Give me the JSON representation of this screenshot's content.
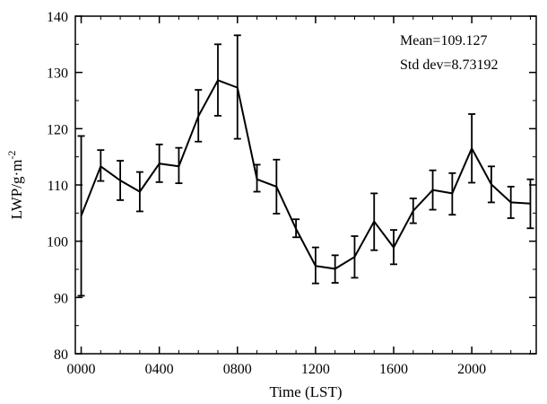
{
  "chart_data": {
    "type": "line",
    "xlabel": "Time (LST)",
    "ylabel": "LWP/g·m",
    "ylabel_sup": "-2",
    "xlim": [
      -0.3,
      23.3
    ],
    "ylim": [
      80,
      140
    ],
    "x_ticks": [
      0,
      4,
      8,
      12,
      16,
      20
    ],
    "x_tick_labels": [
      "0000",
      "0400",
      "0800",
      "1200",
      "1600",
      "2000"
    ],
    "y_ticks": [
      80,
      90,
      100,
      110,
      120,
      130,
      140
    ],
    "y_tick_labels": [
      "80",
      "90",
      "100",
      "110",
      "120",
      "130",
      "140"
    ],
    "grid": false,
    "series": [
      {
        "x": [
          0,
          1,
          2,
          3,
          4,
          5,
          6,
          7,
          8,
          9,
          10,
          11,
          12,
          13,
          14,
          15,
          16,
          17,
          18,
          19,
          20,
          21,
          22,
          23
        ],
        "y": [
          104.5,
          113.3,
          110.8,
          108.8,
          113.8,
          113.3,
          122.2,
          128.6,
          127.3,
          111.0,
          109.7,
          102.2,
          95.6,
          95.1,
          97.2,
          103.5,
          98.9,
          105.4,
          109.1,
          108.5,
          116.5,
          110.1,
          106.9,
          106.7
        ],
        "err_upper": [
          118.7,
          116.2,
          114.3,
          112.3,
          117.2,
          116.6,
          126.9,
          135.0,
          136.6,
          113.6,
          114.5,
          103.9,
          98.9,
          97.5,
          100.9,
          108.5,
          102.0,
          107.6,
          112.6,
          112.1,
          122.6,
          113.3,
          109.7,
          111.0
        ],
        "err_lower": [
          90.3,
          110.7,
          107.3,
          105.3,
          110.5,
          110.3,
          117.7,
          122.3,
          118.2,
          108.8,
          104.9,
          100.7,
          92.5,
          92.6,
          93.5,
          98.4,
          95.9,
          103.2,
          105.6,
          104.7,
          110.4,
          106.9,
          104.1,
          102.3
        ]
      }
    ],
    "annotations": [
      "Mean=109.127",
      "Std dev=8.73192"
    ],
    "annotation_position": "top-right"
  }
}
